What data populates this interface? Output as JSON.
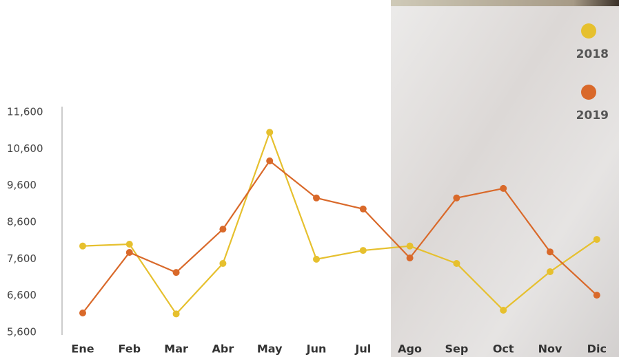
{
  "chart_data": {
    "type": "line",
    "categories": [
      "Ene",
      "Feb",
      "Mar",
      "Abr",
      "May",
      "Jun",
      "Jul",
      "Ago",
      "Sep",
      "Oct",
      "Nov",
      "Dic"
    ],
    "series": [
      {
        "name": "2018",
        "color": "#e6c02e",
        "values": [
          7950,
          8000,
          6100,
          7475,
          11050,
          7590,
          7830,
          7950,
          7475,
          6200,
          7250,
          8130
        ]
      },
      {
        "name": "2019",
        "color": "#d9692a",
        "values": [
          6125,
          7775,
          7230,
          8410,
          10270,
          9260,
          8960,
          7625,
          9260,
          9520,
          7790,
          6610
        ]
      }
    ],
    "ylim": [
      5600,
      11600
    ],
    "yticks": [
      {
        "value": 5600,
        "label": "5,600"
      },
      {
        "value": 6600,
        "label": "6,600"
      },
      {
        "value": 7600,
        "label": "7,600"
      },
      {
        "value": 8600,
        "label": "8,600"
      },
      {
        "value": 9600,
        "label": "9,600"
      },
      {
        "value": 10600,
        "label": "10,600"
      },
      {
        "value": 11600,
        "label": "11,600"
      }
    ],
    "legend": "top-right"
  }
}
